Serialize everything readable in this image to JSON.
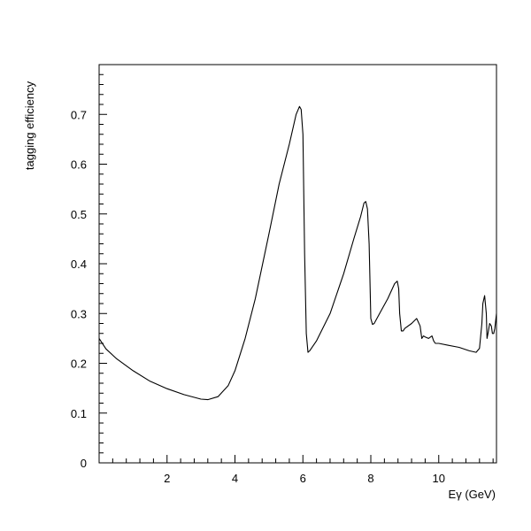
{
  "chart_data": {
    "type": "line",
    "title": "",
    "xlabel": "Eγ (GeV)",
    "ylabel": "tagging efficiency",
    "xlim": [
      0,
      11.7
    ],
    "ylim": [
      0,
      0.8
    ],
    "x_ticks": [
      {
        "value": 2,
        "label": "2"
      },
      {
        "value": 4,
        "label": "4"
      },
      {
        "value": 6,
        "label": "6"
      },
      {
        "value": 8,
        "label": "8"
      },
      {
        "value": 10,
        "label": "10"
      }
    ],
    "y_ticks": [
      {
        "value": 0,
        "label": "0"
      },
      {
        "value": 0.1,
        "label": "0.1"
      },
      {
        "value": 0.2,
        "label": "0.2"
      },
      {
        "value": 0.3,
        "label": "0.3"
      },
      {
        "value": 0.4,
        "label": "0.4"
      },
      {
        "value": 0.5,
        "label": "0.5"
      },
      {
        "value": 0.6,
        "label": "0.6"
      },
      {
        "value": 0.7,
        "label": "0.7"
      }
    ],
    "grid": false,
    "series": [
      {
        "color": "#000000",
        "x": [
          0.0,
          0.2,
          0.5,
          1.0,
          1.5,
          2.0,
          2.5,
          3.0,
          3.2,
          3.5,
          3.8,
          4.0,
          4.3,
          4.6,
          5.0,
          5.3,
          5.6,
          5.8,
          5.9,
          5.95,
          6.0,
          6.05,
          6.1,
          6.15,
          6.2,
          6.4,
          6.8,
          7.2,
          7.5,
          7.7,
          7.8,
          7.85,
          7.9,
          7.95,
          8.0,
          8.05,
          8.1,
          8.3,
          8.5,
          8.7,
          8.78,
          8.82,
          8.85,
          8.9,
          8.95,
          9.0,
          9.2,
          9.35,
          9.45,
          9.5,
          9.55,
          9.6,
          9.7,
          9.8,
          9.85,
          9.9,
          10.0,
          10.3,
          10.6,
          10.9,
          11.1,
          11.2,
          11.27,
          11.3,
          11.35,
          11.4,
          11.42,
          11.45,
          11.5,
          11.55,
          11.58,
          11.62,
          11.65,
          11.7
        ],
        "y": [
          0.25,
          0.229,
          0.21,
          0.185,
          0.164,
          0.149,
          0.137,
          0.128,
          0.127,
          0.133,
          0.155,
          0.185,
          0.25,
          0.33,
          0.46,
          0.56,
          0.64,
          0.7,
          0.716,
          0.71,
          0.66,
          0.42,
          0.26,
          0.222,
          0.225,
          0.245,
          0.3,
          0.38,
          0.45,
          0.495,
          0.522,
          0.525,
          0.51,
          0.44,
          0.29,
          0.278,
          0.28,
          0.305,
          0.33,
          0.36,
          0.365,
          0.35,
          0.3,
          0.265,
          0.265,
          0.27,
          0.28,
          0.29,
          0.275,
          0.25,
          0.255,
          0.253,
          0.25,
          0.255,
          0.245,
          0.24,
          0.24,
          0.236,
          0.232,
          0.225,
          0.222,
          0.23,
          0.28,
          0.32,
          0.336,
          0.3,
          0.25,
          0.26,
          0.28,
          0.275,
          0.26,
          0.26,
          0.27,
          0.3
        ]
      }
    ]
  }
}
